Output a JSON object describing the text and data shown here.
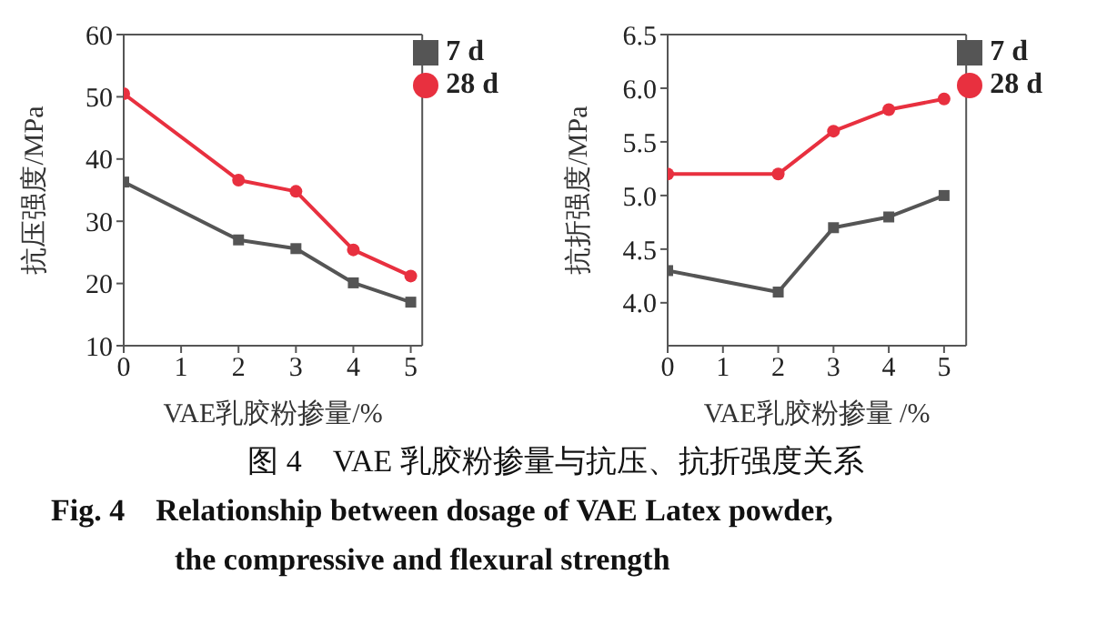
{
  "chart_data": [
    {
      "type": "line",
      "xlabel": "VAE乳胶粉掺量/%",
      "ylabel": "抗压强度/MPa",
      "x": [
        0,
        2,
        3,
        4,
        5
      ],
      "xlim": [
        0,
        5.2
      ],
      "xticks": [
        0,
        1,
        2,
        3,
        4,
        5
      ],
      "ylim": [
        10,
        60
      ],
      "yticks": [
        10,
        20,
        30,
        40,
        50,
        60
      ],
      "legend": "top right",
      "grid": false,
      "series": [
        {
          "name": "7 d",
          "color": "#555555",
          "marker": "square",
          "values": [
            36.3,
            27,
            25.6,
            20.1,
            17
          ]
        },
        {
          "name": "28 d",
          "color": "#e8303f",
          "marker": "circle",
          "values": [
            50.5,
            36.6,
            34.8,
            25.4,
            21.2
          ]
        }
      ],
      "annotations": [
        "图 4　VAE 乳胶粉掺量与抗压、抗折强度关系",
        "Fig. 4　Relationship between dosage of VAE Latex powder,",
        "the compressive and flexural strength"
      ]
    },
    {
      "type": "line",
      "xlabel": "VAE乳胶粉掺量 /%",
      "ylabel": "抗折强度/MPa",
      "x": [
        0,
        2,
        3,
        4,
        5
      ],
      "xlim": [
        0,
        5.4
      ],
      "xticks": [
        0,
        1,
        2,
        3,
        4,
        5
      ],
      "ylim": [
        3.6,
        6.5
      ],
      "yticks": [
        {
          "value": 4,
          "label": "4.0"
        },
        4.5,
        {
          "value": 5,
          "label": "5.0"
        },
        5.5,
        {
          "value": 6,
          "label": "6.0"
        },
        6.5
      ],
      "legend": "top right",
      "grid": false,
      "series": [
        {
          "name": "7 d",
          "color": "#555555",
          "marker": "square",
          "values": [
            4.3,
            4.1,
            4.7,
            4.8,
            5.0
          ]
        },
        {
          "name": "28 d",
          "color": "#e8303f",
          "marker": "circle",
          "values": [
            5.2,
            5.2,
            5.6,
            5.8,
            5.9
          ]
        }
      ]
    }
  ]
}
